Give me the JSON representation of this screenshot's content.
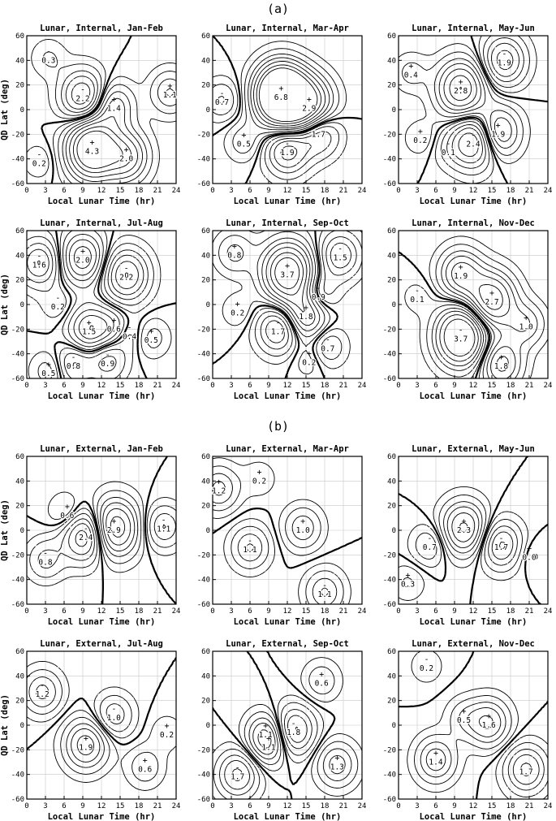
{
  "figure": {
    "section_a_label": "(a)",
    "section_b_label": "(b)"
  },
  "colors": {
    "ink": "#000000",
    "grid": "#c8c8c8",
    "background": "#ffffff"
  },
  "chart_data": [
    {
      "type": "contour",
      "title": "Lunar, Internal, Jan-Feb",
      "xlabel": "Local Lunar Time (hr)",
      "ylabel": "QD Lat (deg)",
      "xlim": [
        0,
        24
      ],
      "ylim": [
        -60,
        60
      ],
      "xticks": [
        0,
        3,
        6,
        9,
        12,
        15,
        18,
        21,
        24
      ],
      "yticks": [
        -60,
        -40,
        -20,
        0,
        20,
        40,
        60
      ],
      "grid": true,
      "extrema": [
        {
          "sign": "-",
          "label": "0.3",
          "x": 3.5,
          "y": 42
        },
        {
          "sign": "-",
          "label": "2.2",
          "x": 9,
          "y": 11
        },
        {
          "sign": "+",
          "label": "1.4",
          "x": 14,
          "y": 3
        },
        {
          "sign": "+",
          "label": "1.1",
          "x": 23,
          "y": 14
        },
        {
          "sign": "-",
          "label": "0.2",
          "x": 2,
          "y": -42
        },
        {
          "sign": "+",
          "label": "4.3",
          "x": 10.5,
          "y": -32
        },
        {
          "sign": "+",
          "label": "2.0",
          "x": 16,
          "y": -38
        }
      ]
    },
    {
      "type": "contour",
      "title": "Lunar, Internal, Mar-Apr",
      "xlabel": "Local Lunar Time (hr)",
      "ylabel": "",
      "xlim": [
        0,
        24
      ],
      "ylim": [
        -60,
        60
      ],
      "xticks": [
        0,
        3,
        6,
        9,
        12,
        15,
        18,
        21,
        24
      ],
      "yticks": [
        -60,
        -40,
        -20,
        0,
        20,
        40,
        60
      ],
      "grid": true,
      "extrema": [
        {
          "sign": "-",
          "label": "0.7",
          "x": 1.5,
          "y": 8
        },
        {
          "sign": "+",
          "label": "6.8",
          "x": 11,
          "y": 12
        },
        {
          "sign": "+",
          "label": "2.9",
          "x": 15.5,
          "y": 3
        },
        {
          "sign": "+",
          "label": "0.5",
          "x": 5,
          "y": -26
        },
        {
          "sign": "-",
          "label": "1.9",
          "x": 12,
          "y": -33
        },
        {
          "sign": "-",
          "label": "1.7",
          "x": 17,
          "y": -18
        }
      ]
    },
    {
      "type": "contour",
      "title": "Lunar, Internal, May-Jun",
      "xlabel": "Local Lunar Time (hr)",
      "ylabel": "",
      "xlim": [
        0,
        24
      ],
      "ylim": [
        -60,
        60
      ],
      "xticks": [
        0,
        3,
        6,
        9,
        12,
        15,
        18,
        21,
        24
      ],
      "yticks": [
        -60,
        -40,
        -20,
        0,
        20,
        40,
        60
      ],
      "grid": true,
      "extrema": [
        {
          "sign": "+",
          "label": "0.4",
          "x": 2,
          "y": 30
        },
        {
          "sign": "-",
          "label": "1.9",
          "x": 17,
          "y": 40
        },
        {
          "sign": "+",
          "label": "2.8",
          "x": 10,
          "y": 17
        },
        {
          "sign": "+",
          "label": "0.2",
          "x": 3.5,
          "y": -23
        },
        {
          "sign": "-",
          "label": "0.1",
          "x": 8,
          "y": -33
        },
        {
          "sign": "-",
          "label": "2.4",
          "x": 12,
          "y": -26
        },
        {
          "sign": "+",
          "label": "1.9",
          "x": 16,
          "y": -18
        }
      ]
    },
    {
      "type": "contour",
      "title": "Lunar, Internal, Jul-Aug",
      "xlabel": "Local Lunar Time (hr)",
      "ylabel": "QD Lat (deg)",
      "xlim": [
        0,
        24
      ],
      "ylim": [
        -60,
        60
      ],
      "xticks": [
        0,
        3,
        6,
        9,
        12,
        15,
        18,
        21,
        24
      ],
      "yticks": [
        -60,
        -40,
        -20,
        0,
        20,
        40,
        60
      ],
      "grid": true,
      "extrema": [
        {
          "sign": "-",
          "label": "1.6",
          "x": 2,
          "y": 34
        },
        {
          "sign": "+",
          "label": "2.0",
          "x": 9,
          "y": 38
        },
        {
          "sign": "-",
          "label": "2.2",
          "x": 16,
          "y": 24
        },
        {
          "sign": "-",
          "label": "0.2",
          "x": 5,
          "y": 0
        },
        {
          "sign": "+",
          "label": "1.5",
          "x": 10,
          "y": -20
        },
        {
          "sign": "+",
          "label": "0.6",
          "x": 14,
          "y": -18
        },
        {
          "sign": "-",
          "label": "0.4",
          "x": 16.5,
          "y": -24
        },
        {
          "sign": "+",
          "label": "0.5",
          "x": 20,
          "y": -27
        },
        {
          "sign": "-",
          "label": "0.8",
          "x": 7.5,
          "y": -48
        },
        {
          "sign": "-",
          "label": "0.9",
          "x": 13,
          "y": -46
        },
        {
          "sign": "+",
          "label": "0.5",
          "x": 3.5,
          "y": -54
        }
      ]
    },
    {
      "type": "contour",
      "title": "Lunar, Internal, Sep-Oct",
      "xlabel": "Local Lunar Time (hr)",
      "ylabel": "",
      "xlim": [
        0,
        24
      ],
      "ylim": [
        -60,
        60
      ],
      "xticks": [
        0,
        3,
        6,
        9,
        12,
        15,
        18,
        21,
        24
      ],
      "yticks": [
        -60,
        -40,
        -20,
        0,
        20,
        40,
        60
      ],
      "grid": true,
      "extrema": [
        {
          "sign": "+",
          "label": "0.8",
          "x": 3.5,
          "y": 42
        },
        {
          "sign": "+",
          "label": "3.7",
          "x": 12,
          "y": 26
        },
        {
          "sign": "-",
          "label": "1.5",
          "x": 20.5,
          "y": 40
        },
        {
          "sign": "-",
          "label": "0.9",
          "x": 17,
          "y": 8
        },
        {
          "sign": "+",
          "label": "0.2",
          "x": 4,
          "y": -5
        },
        {
          "sign": "+",
          "label": "1.8",
          "x": 15,
          "y": -8
        },
        {
          "sign": "-",
          "label": "1.7",
          "x": 10.5,
          "y": -20
        },
        {
          "sign": "-",
          "label": "0.7",
          "x": 18.5,
          "y": -34
        },
        {
          "sign": "+",
          "label": "0.2",
          "x": 15.5,
          "y": -45
        }
      ]
    },
    {
      "type": "contour",
      "title": "Lunar, Internal, Nov-Dec",
      "xlabel": "Local Lunar Time (hr)",
      "ylabel": "",
      "xlim": [
        0,
        24
      ],
      "ylim": [
        -60,
        60
      ],
      "xticks": [
        0,
        3,
        6,
        9,
        12,
        15,
        18,
        21,
        24
      ],
      "yticks": [
        -60,
        -40,
        -20,
        0,
        20,
        40,
        60
      ],
      "grid": true,
      "extrema": [
        {
          "sign": "-",
          "label": "0.1",
          "x": 3,
          "y": 6
        },
        {
          "sign": "+",
          "label": "1.9",
          "x": 10,
          "y": 25
        },
        {
          "sign": "+",
          "label": "2.7",
          "x": 15,
          "y": 4
        },
        {
          "sign": "+",
          "label": "1.0",
          "x": 20.5,
          "y": -16
        },
        {
          "sign": "-",
          "label": "3.7",
          "x": 10,
          "y": -26
        },
        {
          "sign": "+",
          "label": "1.8",
          "x": 16.5,
          "y": -48
        }
      ]
    },
    {
      "type": "contour",
      "title": "Lunar, External, Jan-Feb",
      "xlabel": "Local Lunar Time (hr)",
      "ylabel": "QD Lat (deg)",
      "xlim": [
        0,
        24
      ],
      "ylim": [
        -60,
        60
      ],
      "xticks": [
        0,
        3,
        6,
        9,
        12,
        15,
        18,
        21,
        24
      ],
      "yticks": [
        -60,
        -40,
        -20,
        0,
        20,
        40,
        60
      ],
      "grid": true,
      "extrema": [
        {
          "sign": "+",
          "label": "0.6",
          "x": 6.5,
          "y": 14
        },
        {
          "sign": "-",
          "label": "2.4",
          "x": 9.5,
          "y": -4
        },
        {
          "sign": "+",
          "label": "2.9",
          "x": 14,
          "y": 2
        },
        {
          "sign": "-",
          "label": "1.1",
          "x": 22,
          "y": 3
        },
        {
          "sign": "-",
          "label": "0.8",
          "x": 3,
          "y": -24
        }
      ]
    },
    {
      "type": "contour",
      "title": "Lunar, External, Mar-Apr",
      "xlabel": "Local Lunar Time (hr)",
      "ylabel": "",
      "xlim": [
        0,
        24
      ],
      "ylim": [
        -60,
        60
      ],
      "xticks": [
        0,
        3,
        6,
        9,
        12,
        15,
        18,
        21,
        24
      ],
      "yticks": [
        -60,
        -40,
        -20,
        0,
        20,
        40,
        60
      ],
      "grid": true,
      "extrema": [
        {
          "sign": "+",
          "label": "1.2",
          "x": 1,
          "y": 34
        },
        {
          "sign": "+",
          "label": "0.2",
          "x": 7.5,
          "y": 42
        },
        {
          "sign": "+",
          "label": "1.0",
          "x": 14.5,
          "y": 2
        },
        {
          "sign": "-",
          "label": "1.1",
          "x": 6,
          "y": -14
        },
        {
          "sign": "-",
          "label": "1.1",
          "x": 18,
          "y": -50
        }
      ]
    },
    {
      "type": "contour",
      "title": "Lunar, External, May-Jun",
      "xlabel": "Local Lunar Time (hr)",
      "ylabel": "",
      "xlim": [
        0,
        24
      ],
      "ylim": [
        -60,
        60
      ],
      "xticks": [
        0,
        3,
        6,
        9,
        12,
        15,
        18,
        21,
        24
      ],
      "yticks": [
        -60,
        -40,
        -20,
        0,
        20,
        40,
        60
      ],
      "grid": true,
      "extrema": [
        {
          "sign": "+",
          "label": "2.3",
          "x": 10.5,
          "y": 2
        },
        {
          "sign": "-",
          "label": "0.7",
          "x": 5,
          "y": -12
        },
        {
          "sign": "-",
          "label": "1.7",
          "x": 16.5,
          "y": -12
        },
        {
          "sign": "+",
          "label": "0.0",
          "x": 21,
          "y": -20
        },
        {
          "sign": "+",
          "label": "0.3",
          "x": 1.5,
          "y": -42
        }
      ]
    },
    {
      "type": "contour",
      "title": "Lunar, External, Jul-Aug",
      "xlabel": "Local Lunar Time (hr)",
      "ylabel": "QD Lat (deg)",
      "xlim": [
        0,
        24
      ],
      "ylim": [
        -60,
        60
      ],
      "xticks": [
        0,
        3,
        6,
        9,
        12,
        15,
        18,
        21,
        24
      ],
      "yticks": [
        -60,
        -40,
        -20,
        0,
        20,
        40,
        60
      ],
      "grid": true,
      "extrema": [
        {
          "sign": "-",
          "label": "1.2",
          "x": 2.5,
          "y": 27
        },
        {
          "sign": "-",
          "label": "1.0",
          "x": 14,
          "y": 8
        },
        {
          "sign": "+",
          "label": "0.2",
          "x": 22.5,
          "y": -6
        },
        {
          "sign": "+",
          "label": "1.9",
          "x": 9.5,
          "y": -16
        },
        {
          "sign": "+",
          "label": "0.6",
          "x": 19,
          "y": -34
        }
      ]
    },
    {
      "type": "contour",
      "title": "Lunar, External, Sep-Oct",
      "xlabel": "Local Lunar Time (hr)",
      "ylabel": "",
      "xlim": [
        0,
        24
      ],
      "ylim": [
        -60,
        60
      ],
      "xticks": [
        0,
        3,
        6,
        9,
        12,
        15,
        18,
        21,
        24
      ],
      "yticks": [
        -60,
        -40,
        -20,
        0,
        20,
        40,
        60
      ],
      "grid": true,
      "extrema": [
        {
          "sign": "+",
          "label": "0.6",
          "x": 17.5,
          "y": 36
        },
        {
          "sign": "+",
          "label": "1.1",
          "x": 8.5,
          "y": -6
        },
        {
          "sign": "-",
          "label": "1.8",
          "x": 13,
          "y": -4
        },
        {
          "sign": "+",
          "label": "1.1",
          "x": 9,
          "y": -16
        },
        {
          "sign": "-",
          "label": "1.7",
          "x": 4,
          "y": -40
        },
        {
          "sign": "+",
          "label": "1.3",
          "x": 20,
          "y": -32
        }
      ]
    },
    {
      "type": "contour",
      "title": "Lunar, External, Nov-Dec",
      "xlabel": "Local Lunar Time (hr)",
      "ylabel": "",
      "xlim": [
        0,
        24
      ],
      "ylim": [
        -60,
        60
      ],
      "xticks": [
        0,
        3,
        6,
        9,
        12,
        15,
        18,
        21,
        24
      ],
      "yticks": [
        -60,
        -40,
        -20,
        0,
        20,
        40,
        60
      ],
      "grid": true,
      "extrema": [
        {
          "sign": "-",
          "label": "0.2",
          "x": 4.5,
          "y": 48
        },
        {
          "sign": "+",
          "label": "0.5",
          "x": 10.5,
          "y": 6
        },
        {
          "sign": "+",
          "label": "1.6",
          "x": 14.5,
          "y": 2
        },
        {
          "sign": "+",
          "label": "1.4",
          "x": 6,
          "y": -28
        },
        {
          "sign": "-",
          "label": "1.7",
          "x": 20.5,
          "y": -36
        }
      ]
    }
  ]
}
